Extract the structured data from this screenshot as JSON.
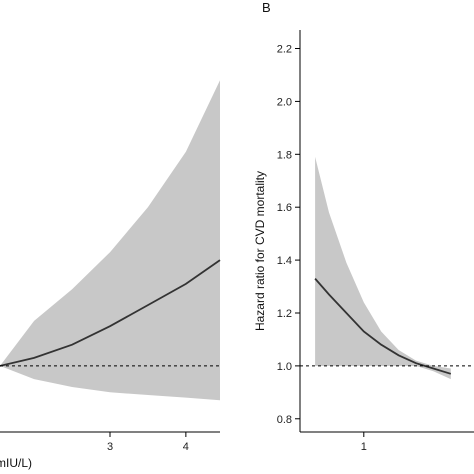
{
  "colors": {
    "band": "#c8c8c8",
    "line": "#333333",
    "axis": "#000000",
    "reference": "#000000"
  },
  "chart_data": [
    {
      "type": "area",
      "panel_label": "",
      "xlabel": "mIU/L)",
      "ylabel": "",
      "xlim": [
        1.55,
        4.45
      ],
      "ylim": [
        0.75,
        2.27
      ],
      "xticks": [
        3,
        4
      ],
      "xtick_labels": [
        "3",
        "4"
      ],
      "yticks": [],
      "reference_line": 1.0,
      "series": [
        {
          "x": [
            1.55,
            2.0,
            2.5,
            3.0,
            3.5,
            4.0,
            4.45
          ],
          "y": [
            1.0,
            1.03,
            1.08,
            1.15,
            1.23,
            1.31,
            1.4
          ],
          "lower": [
            1.0,
            0.95,
            0.92,
            0.9,
            0.89,
            0.88,
            0.87
          ],
          "upper": [
            1.0,
            1.17,
            1.29,
            1.43,
            1.6,
            1.81,
            2.08
          ]
        }
      ]
    },
    {
      "type": "area",
      "panel_label": "B",
      "xlabel": "",
      "ylabel": "Hazard ratio for CVD mortality",
      "xlim": [
        0.45,
        1.95
      ],
      "ylim": [
        0.75,
        2.27
      ],
      "xticks": [
        1
      ],
      "xtick_labels": [
        "1"
      ],
      "yticks": [
        0.8,
        1.0,
        1.2,
        1.4,
        1.6,
        1.8,
        2.0,
        2.2
      ],
      "ytick_labels": [
        "0.8",
        "1.0",
        "1.2",
        "1.4",
        "1.6",
        "1.8",
        "2.0",
        "2.2"
      ],
      "reference_line": 1.0,
      "series": [
        {
          "x": [
            0.58,
            0.7,
            0.85,
            1.0,
            1.15,
            1.3,
            1.45,
            1.6,
            1.75
          ],
          "y": [
            1.33,
            1.27,
            1.2,
            1.13,
            1.08,
            1.04,
            1.01,
            0.99,
            0.97
          ],
          "lower": [
            1.0,
            1.0,
            1.0,
            1.0,
            1.0,
            1.0,
            1.0,
            0.98,
            0.95
          ],
          "upper": [
            1.79,
            1.58,
            1.39,
            1.24,
            1.13,
            1.06,
            1.02,
            1.0,
            0.99
          ]
        }
      ]
    }
  ]
}
